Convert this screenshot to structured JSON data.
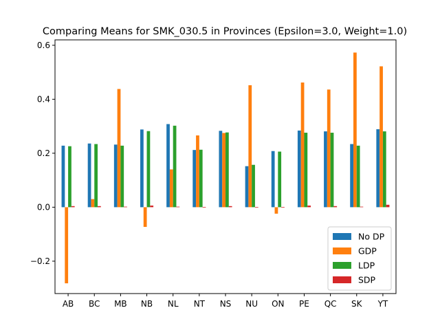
{
  "chart_data": {
    "type": "bar",
    "title": "Comparing Means for SMK_030.5 in Provinces (Epsilon=3.0, Weight=1.0)",
    "xlabel": "",
    "ylabel": "",
    "categories": [
      "AB",
      "BC",
      "MB",
      "NB",
      "NL",
      "NT",
      "NS",
      "NU",
      "ON",
      "PE",
      "QC",
      "SK",
      "YT"
    ],
    "ylim": [
      -0.32,
      0.62
    ],
    "yticks": [
      -0.2,
      0.0,
      0.2,
      0.4,
      0.6
    ],
    "ytick_labels": [
      "−0.2",
      "0.0",
      "0.2",
      "0.4",
      "0.6"
    ],
    "grid": false,
    "legend_position": "lower-right",
    "series": [
      {
        "name": "No DP",
        "color": "#1f77b4",
        "values": [
          0.228,
          0.236,
          0.232,
          0.288,
          0.308,
          0.212,
          0.283,
          0.152,
          0.208,
          0.284,
          0.281,
          0.234,
          0.289
        ]
      },
      {
        "name": "GDP",
        "color": "#ff7f0e",
        "values": [
          -0.282,
          0.03,
          0.438,
          -0.073,
          0.14,
          0.266,
          0.275,
          0.452,
          -0.024,
          0.462,
          0.436,
          0.573,
          0.522
        ]
      },
      {
        "name": "LDP",
        "color": "#2ca02c",
        "values": [
          0.226,
          0.234,
          0.228,
          0.282,
          0.302,
          0.213,
          0.277,
          0.157,
          0.206,
          0.276,
          0.276,
          0.228,
          0.281
        ]
      },
      {
        "name": "SDP",
        "color": "#d62728",
        "values": [
          0.004,
          0.004,
          0.002,
          0.006,
          0.002,
          0.001,
          0.004,
          0.001,
          0.001,
          0.006,
          0.004,
          0.002,
          0.009
        ]
      }
    ]
  }
}
